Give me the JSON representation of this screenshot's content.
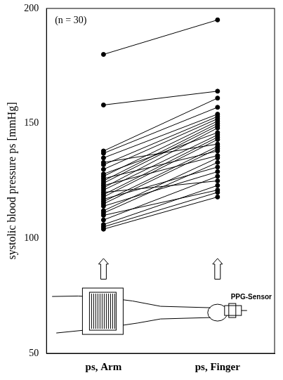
{
  "chart_data": {
    "type": "line",
    "y_label": "systolic blood pressure ps [mmHg]",
    "annotations": [
      "(n = 30)",
      "PPG-Sensor"
    ],
    "categories": [
      "ps, Arm",
      "ps, Finger"
    ],
    "color": "#000000",
    "marker": "circle",
    "line_style": "solid",
    "series": [
      {
        "values": [
          180,
          195
        ]
      },
      {
        "values": [
          158,
          164
        ]
      },
      {
        "values": [
          138,
          161
        ]
      },
      {
        "values": [
          137,
          157
        ]
      },
      {
        "values": [
          135,
          154
        ]
      },
      {
        "values": [
          133,
          141
        ]
      },
      {
        "values": [
          132,
          153
        ]
      },
      {
        "values": [
          130,
          152
        ]
      },
      {
        "values": [
          128,
          146
        ]
      },
      {
        "values": [
          127,
          151
        ]
      },
      {
        "values": [
          126,
          138
        ]
      },
      {
        "values": [
          125,
          150
        ]
      },
      {
        "values": [
          124,
          149
        ]
      },
      {
        "values": [
          123,
          136
        ]
      },
      {
        "values": [
          122,
          148
        ]
      },
      {
        "values": [
          121,
          145
        ]
      },
      {
        "values": [
          120,
          125
        ]
      },
      {
        "values": [
          119,
          144
        ]
      },
      {
        "values": [
          118,
          143
        ]
      },
      {
        "values": [
          117,
          131
        ]
      },
      {
        "values": [
          116,
          140
        ]
      },
      {
        "values": [
          115,
          139
        ]
      },
      {
        "values": [
          114,
          129
        ]
      },
      {
        "values": [
          112,
          135
        ]
      },
      {
        "values": [
          111,
          133
        ]
      },
      {
        "values": [
          110,
          121
        ]
      },
      {
        "values": [
          108,
          127
        ]
      },
      {
        "values": [
          106,
          123
        ]
      },
      {
        "values": [
          105,
          120
        ]
      },
      {
        "values": [
          104,
          118
        ]
      }
    ],
    "ylim": [
      50,
      200
    ],
    "yticks": [
      50,
      100,
      150,
      200
    ],
    "grid": false,
    "tick_labels": true
  }
}
